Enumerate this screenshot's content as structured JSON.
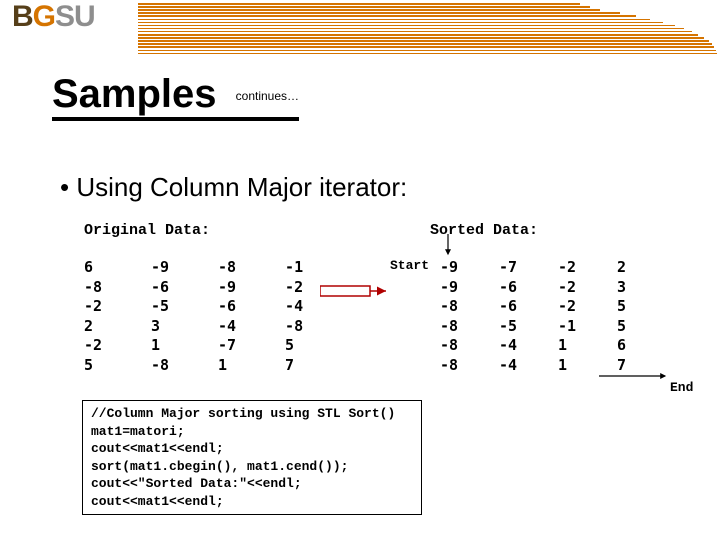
{
  "logo": {
    "b": "B",
    "g": "G",
    "su": "SU"
  },
  "title": "Samples",
  "continues": "continues…",
  "bullet": "• Using Column Major iterator:",
  "orig_label": "Original Data:",
  "sorted_label": "Sorted Data:",
  "orig": {
    "c0": "6\n-8\n-2\n2\n-2\n5",
    "c1": "-9\n-6\n-5\n3\n1\n-8",
    "c2": "-8\n-9\n-6\n-4\n-7\n1",
    "c3": "-1\n-2\n-4\n-8\n5\n7"
  },
  "sorted": {
    "c0": "-9\n-9\n-8\n-8\n-8\n-8",
    "c1": "-7\n-6\n-6\n-5\n-4\n-4",
    "c2": "-2\n-2\n-2\n-1\n1\n1",
    "c3": "2\n3\n5\n5\n6\n7"
  },
  "start_label": "Start",
  "end_label": "End",
  "code": {
    "l0": "//Column Major sorting using STL Sort()",
    "l1": "mat1=matori;",
    "l2": "cout<<mat1<<endl;",
    "l3": "sort(mat1.cbegin(), mat1.cend());",
    "l4": "cout<<\"Sorted Data:\"<<endl;",
    "l5": "cout<<mat1<<endl;"
  },
  "bars": {
    "rights": [
      580,
      590,
      600,
      620,
      636,
      650,
      663,
      675,
      684,
      692,
      698,
      704,
      709,
      712,
      714,
      716,
      717
    ],
    "top0": 3,
    "gap": 3.1
  },
  "colors": {
    "orange": "#d57400",
    "arrow_red": "#b00000"
  }
}
